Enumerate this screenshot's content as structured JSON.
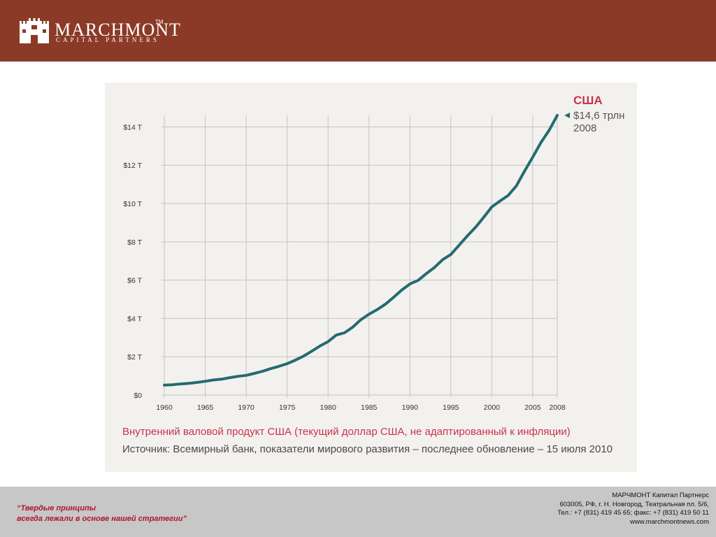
{
  "header": {
    "brand_name": "MARCHMONT",
    "brand_tm": "TM",
    "brand_sub": "CAPITAL PARTNERS",
    "background_color": "#8b3a27"
  },
  "chart_data": {
    "type": "line",
    "x_ticks": [
      "1960",
      "1965",
      "1970",
      "1975",
      "1980",
      "1985",
      "1990",
      "1995",
      "2000",
      "2005",
      "2008"
    ],
    "y_ticks": [
      "$0",
      "$2 T",
      "$4 T",
      "$6 T",
      "$8 T",
      "$10 T",
      "$12 T",
      "$14 T"
    ],
    "ylim": [
      0,
      14.6
    ],
    "xlim": [
      1960,
      2008
    ],
    "grid": true,
    "line_color": "#256b70",
    "series": [
      {
        "x": [
          1960,
          1961,
          1962,
          1963,
          1964,
          1965,
          1966,
          1967,
          1968,
          1969,
          1970,
          1971,
          1972,
          1973,
          1974,
          1975,
          1976,
          1977,
          1978,
          1979,
          1980,
          1981,
          1982,
          1983,
          1984,
          1985,
          1986,
          1987,
          1988,
          1989,
          1990,
          1991,
          1992,
          1993,
          1994,
          1995,
          1996,
          1997,
          1998,
          1999,
          2000,
          2001,
          2002,
          2003,
          2004,
          2005,
          2006,
          2007,
          2008
        ],
        "values": [
          0.52,
          0.54,
          0.58,
          0.61,
          0.66,
          0.72,
          0.79,
          0.83,
          0.91,
          0.98,
          1.03,
          1.13,
          1.24,
          1.38,
          1.5,
          1.64,
          1.82,
          2.03,
          2.29,
          2.56,
          2.79,
          3.13,
          3.25,
          3.54,
          3.93,
          4.22,
          4.46,
          4.74,
          5.1,
          5.48,
          5.8,
          5.99,
          6.34,
          6.66,
          7.07,
          7.34,
          7.82,
          8.3,
          8.75,
          9.27,
          9.82,
          10.13,
          10.42,
          10.92,
          11.69,
          12.42,
          13.18,
          13.82,
          14.6
        ]
      }
    ],
    "annotation": {
      "country": "США",
      "value": "$14,6 трлн",
      "year": "2008",
      "country_color": "#c8334f"
    },
    "caption": "Внутренний валовой продукт США (текущий доллар США, не адаптированный к инфляции)",
    "source": "Источник: Всемирный банк, показатели мирового развития – последнее обновление – 15 июля 2010"
  },
  "footer": {
    "slogan_line1": "“Твердые принципы",
    "slogan_line2": "всегда лежали в основе нашей стратегии”",
    "company": "МАРЧМОНТ Капитал Партнерс",
    "address": "603005, РФ, г. Н. Новгород, Театральная пл. 5/6,",
    "phone": "Тел.: +7 (831) 419 45 65; факс: +7 (831) 419 50 11",
    "website": "www.marchmontnews.com"
  }
}
